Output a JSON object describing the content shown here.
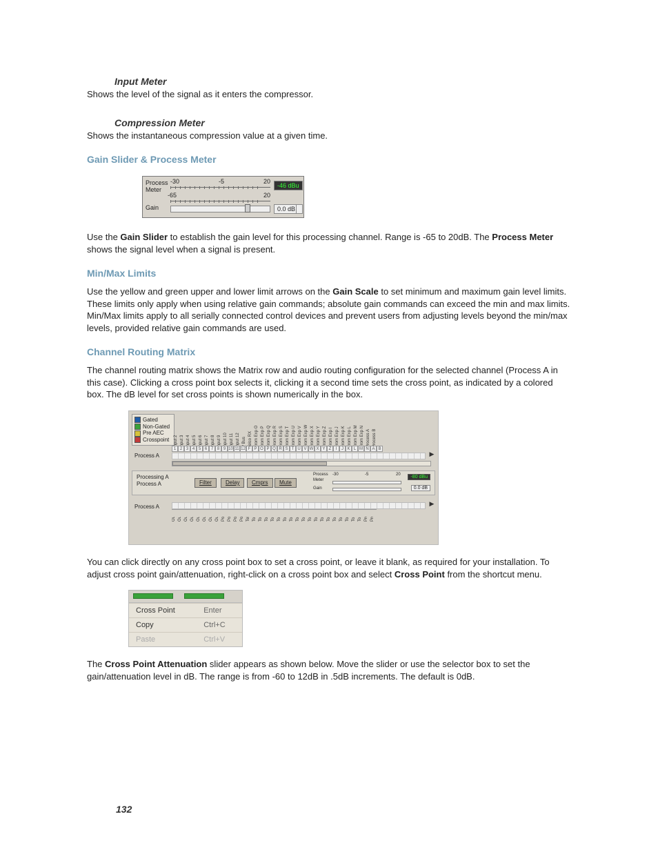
{
  "sections": {
    "input_meter": {
      "heading": "Input Meter",
      "body": "Shows the level of the signal as it enters the compressor."
    },
    "compression_meter": {
      "heading": "Compression Meter",
      "body": "Shows the instantaneous compression value at a given time."
    },
    "gain_slider": {
      "heading": "Gain Slider & Process Meter",
      "para_pre": "Use the ",
      "para_b1": "Gain Slider",
      "para_mid1": " to establish the gain level for this processing channel. Range is -65 to 20dB. The ",
      "para_b2": "Process Meter",
      "para_post": " shows the signal level when a signal is present."
    },
    "minmax": {
      "heading": "Min/Max Limits",
      "para_pre": "Use the yellow and green upper and lower limit arrows on the ",
      "para_b1": "Gain Scale",
      "para_post": " to set minimum and maximum gain level limits. These limits only apply when using relative gain commands; absolute gain commands can exceed the min and max limits. Min/Max limits apply to all serially connected control devices and prevent users from adjusting levels beyond the min/max levels, provided relative gain commands are used."
    },
    "routing": {
      "heading": "Channel Routing Matrix",
      "para1": "The channel routing matrix shows the Matrix row and audio routing configuration for the selected channel (Process A in this case). Clicking a cross point box selects it, clicking it a second time sets the cross point, as indicated by a colored box. The dB level for set cross points is shown numerically in the box.",
      "para2_pre": "You can click directly on any cross point box to set a cross point, or leave it blank, as required for your installation. To adjust cross point gain/attenuation, right-click on a cross point box and select ",
      "para2_b": "Cross Point",
      "para2_post": " from the shortcut menu.",
      "para3_pre": "The ",
      "para3_b": "Cross Point Attenuation",
      "para3_post": " slider appears as shown below. Move the slider or use the selector box to set the gain/attenuation level in dB. The range is from -60 to 12dB in .5dB increments. The default is 0dB."
    }
  },
  "gain_figure": {
    "labels": {
      "process": "Process",
      "meter": "Meter",
      "gain": "Gain"
    },
    "scale": {
      "left_top": "-30",
      "mid_top": "-5",
      "right_top": "20",
      "left_bot": "-65",
      "right_bot": "20"
    },
    "readouts": {
      "process": "-46 dBu",
      "gain": "0.0 dB"
    }
  },
  "matrix_figure": {
    "legend": [
      "Gated",
      "Non-Gated",
      "Pre AEC",
      "Crosspoint"
    ],
    "row_label": "Process A",
    "top_headers": [
      "Input 1",
      "Input 2",
      "Input 3",
      "Input 4",
      "Input 5",
      "Input 6",
      "Input 7",
      "Input 8",
      "Input 9",
      "Input 10",
      "Input 11",
      "Input 12",
      "P Bus",
      "Telco RX",
      "From Exp O",
      "From Exp P",
      "From Exp Q",
      "From Exp R",
      "From Exp S",
      "From Exp T",
      "From Exp U",
      "From Exp V",
      "From Exp W",
      "From Exp X",
      "From Exp Y",
      "From Exp Z",
      "From Exp I",
      "From Exp J",
      "From Exp K",
      "From Exp L",
      "From Exp M",
      "From Exp N",
      "Process A",
      "Process B"
    ],
    "top_numbers": [
      "1",
      "2",
      "3",
      "4",
      "5",
      "6",
      "7",
      "8",
      "9",
      "10",
      "11",
      "12",
      "F",
      "P",
      "O",
      "P",
      "Q",
      "R",
      "S",
      "T",
      "U",
      "V",
      "W",
      "X",
      "Y",
      "Z",
      "I",
      "J",
      "K",
      "L",
      "M",
      "N",
      "A",
      "B"
    ],
    "mid": {
      "label1": "Processing A",
      "label2": "Process A",
      "buttons": [
        "Filter",
        "Delay",
        "Cmprs",
        "Mute"
      ],
      "mini": {
        "process": "Process",
        "meter": "Meter",
        "gain": "Gain",
        "scale_l": "-30",
        "scale_m": "-5",
        "scale_r": "20",
        "scale_bl": "-65",
        "scale_br": "20",
        "ro_process": "-80 dBu",
        "ro_gain": "0.0 dB"
      }
    },
    "row_label_bot": "Process A",
    "bot_numbers": [
      "1",
      "2",
      "3",
      "4",
      "5",
      "6",
      "7",
      "8",
      "1",
      "2",
      "3",
      "4",
      "T",
      "O",
      "P",
      "Q",
      "R",
      "S",
      "T",
      "U",
      "V",
      "W",
      "X",
      "Y",
      "Z",
      "I",
      "J",
      "K",
      "L",
      "M",
      "N",
      "A",
      "B"
    ],
    "bot_headers": [
      "Output 1",
      "Output 2",
      "Output 3",
      "Output 4",
      "Output 5",
      "Output 6",
      "Output 7",
      "Output 8",
      "PowerAmp 1",
      "PowerAmp 2",
      "PowerAmp 3",
      "PowerAmp 4",
      "Telco TX",
      "To Exp O",
      "To Exp P",
      "To Exp Q",
      "To Exp R",
      "To Exp S",
      "To Exp T",
      "To Exp U",
      "To Exp V",
      "To Exp W",
      "To Exp X",
      "To Exp Y",
      "To Exp Z",
      "To Exp I",
      "To Exp J",
      "To Exp K",
      "To Exp L",
      "To Exp M",
      "To Exp N",
      "Process A",
      "Process B"
    ]
  },
  "context_menu": {
    "items": [
      {
        "label": "Cross Point",
        "key": "Enter",
        "disabled": false
      },
      {
        "label": "Copy",
        "key": "Ctrl+C",
        "disabled": false
      },
      {
        "label": "Paste",
        "key": "Ctrl+V",
        "disabled": true
      }
    ]
  },
  "page_number": "132"
}
